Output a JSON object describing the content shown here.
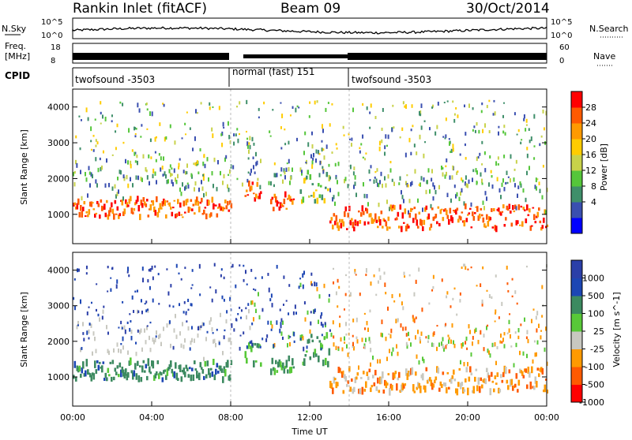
{
  "header": {
    "station": "Rankin Inlet (fitACF)",
    "beam": "Beam 09",
    "date": "30/Oct/2014"
  },
  "panels": {
    "nsky": {
      "label": "N.Sky",
      "ticks": [
        "10^5",
        "10^0"
      ]
    },
    "nsearch": {
      "label": "N.Search",
      "ticks": [
        "10^5",
        "10^0"
      ]
    },
    "freq": {
      "label_line1": "Freq.",
      "label_line2": "[MHz]",
      "ticks": [
        "18",
        "8"
      ]
    },
    "nave": {
      "label": "Nave",
      "ticks": [
        "60",
        "0"
      ]
    },
    "cpid": {
      "label": "CPID"
    }
  },
  "chart_data": [
    {
      "type": "heatmap",
      "quantity": "Power",
      "colorbar_label": "Power [dB]",
      "colorbar_ticks": [
        "28",
        "24",
        "20",
        "16",
        "12",
        "8",
        "4"
      ],
      "ylabel": "Slant Range [km]",
      "yticks": [
        "4000",
        "3000",
        "2000",
        "1000"
      ],
      "ylim": [
        180,
        4500
      ],
      "xlim_hours": [
        0,
        24
      ],
      "bands": [
        {
          "start_h": 0.0,
          "end_h": 8.0,
          "center_km": 1180,
          "width_km": 520,
          "level": "strong"
        },
        {
          "start_h": 8.7,
          "end_h": 9.5,
          "center_km": 1650,
          "width_km": 650,
          "level": "strong"
        },
        {
          "start_h": 10.0,
          "end_h": 11.2,
          "center_km": 1350,
          "width_km": 450,
          "level": "strong"
        },
        {
          "start_h": 11.5,
          "end_h": 13.0,
          "center_km": 1800,
          "width_km": 900,
          "level": "medium"
        },
        {
          "start_h": 13.0,
          "end_h": 24.0,
          "center_km": 900,
          "width_km": 650,
          "level": "strong"
        }
      ]
    },
    {
      "type": "heatmap",
      "quantity": "Velocity",
      "colorbar_label": "Velocity [m s^-1]",
      "colorbar_ticks": [
        "1000",
        "500",
        "100",
        "25",
        "-25",
        "-100",
        "-500",
        "-1000"
      ],
      "ylabel": "Slant Range [km]",
      "yticks": [
        "4000",
        "3000",
        "2000",
        "1000"
      ],
      "ylim": [
        180,
        4500
      ],
      "xlim_hours": [
        0,
        24
      ],
      "xticks": [
        "00:00",
        "04:00",
        "08:00",
        "12:00",
        "16:00",
        "20:00",
        "00:00"
      ],
      "xlabel": "Time UT"
    }
  ],
  "cpid_segments": [
    {
      "label": "twofsound -3503"
    },
    {
      "label": "normal (fast) 151"
    },
    {
      "label": "twofsound -3503"
    }
  ],
  "colors": {
    "power": [
      "#0000ff",
      "#3a4fb0",
      "#3f8f6a",
      "#55c63a",
      "#c8d24a",
      "#ffcc00",
      "#ff9a00",
      "#ff5a00",
      "#ff0000"
    ],
    "velocity": [
      "#ff0000",
      "#ff5a00",
      "#ff9a00",
      "#c8c8c0",
      "#58c838",
      "#3c8a60",
      "#1c46b4",
      "#2b3fa8"
    ]
  }
}
